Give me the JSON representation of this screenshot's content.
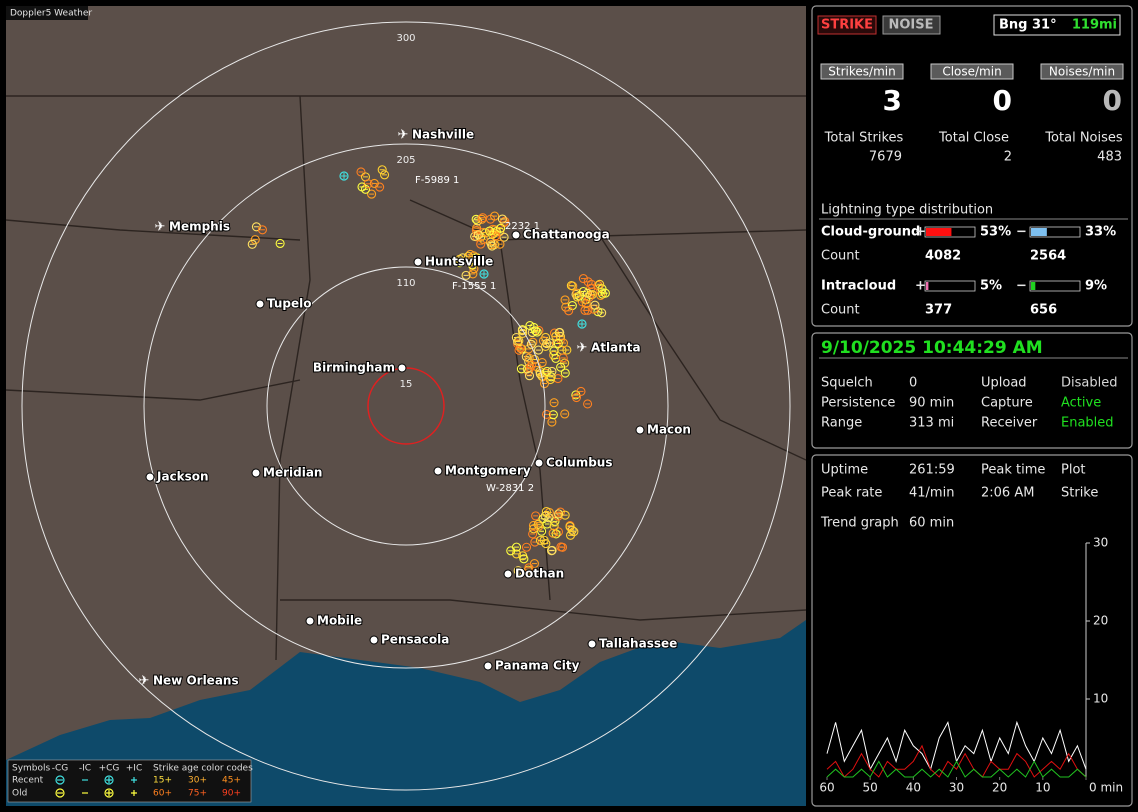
{
  "window": {
    "title": "Doppler5 Weather"
  },
  "map": {
    "range_rings": [
      "300",
      "205",
      "110",
      "15"
    ],
    "cities": [
      "Nashville",
      "Memphis",
      "Chattanooga",
      "Huntsville",
      "Tupelo",
      "Atlanta",
      "Birmingham",
      "Macon",
      "Jackson",
      "Meridian",
      "Montgomery",
      "Columbus",
      "Dothan",
      "Mobile",
      "Pensacola",
      "Tallahassee",
      "Panama City",
      "New Orleans"
    ],
    "strike_tags": [
      "F-5989 1",
      "2232 1",
      "F-1555 1",
      "W-2831 2"
    ],
    "legend": {
      "symbols": "Symbols",
      "headers": [
        "-CG",
        "-IC",
        "+CG",
        "+IC"
      ],
      "age_title": "Strike age color codes",
      "rows": [
        {
          "label": "Recent",
          "ages": [
            "15+",
            "30+",
            "45+"
          ]
        },
        {
          "label": "Old",
          "ages": [
            "60+",
            "75+",
            "90+"
          ]
        }
      ]
    }
  },
  "status": {
    "tabs": [
      "STRIKE",
      "NOISE"
    ],
    "bearing": "Bng 31°",
    "distance": "119mi",
    "rates": [
      {
        "label": "Strikes/min",
        "value": "3",
        "color": "#ffffff"
      },
      {
        "label": "Close/min",
        "value": "0",
        "color": "#ffffff"
      },
      {
        "label": "Noises/min",
        "value": "0",
        "color": "#b8b8b8"
      }
    ],
    "totals": [
      {
        "label": "Total Strikes",
        "value": "7679"
      },
      {
        "label": "Total Close",
        "value": "2"
      },
      {
        "label": "Total Noises",
        "value": "483"
      }
    ],
    "distribution": {
      "title": "Lightning type distribution",
      "count_label": "Count",
      "pos_sign": "+",
      "neg_sign": "−",
      "rows": [
        {
          "label": "Cloud-ground",
          "pos": {
            "value": 53,
            "label": "53%"
          },
          "neg": {
            "value": 33,
            "label": "33%"
          },
          "pos_color": "#ff1010",
          "neg_color": "#7ec0f0",
          "pos_count": "4082",
          "neg_count": "2564"
        },
        {
          "label": "Intracloud",
          "pos": {
            "value": 5,
            "label": "5%"
          },
          "neg": {
            "value": 9,
            "label": "9%"
          },
          "pos_color": "#f070b0",
          "neg_color": "#20d020",
          "pos_count": "377",
          "neg_count": "656"
        }
      ]
    }
  },
  "clock": {
    "datetime": "9/10/2025 10:44:29 AM"
  },
  "settings": {
    "left": [
      {
        "label": "Squelch",
        "value": "0"
      },
      {
        "label": "Persistence",
        "value": "90 min"
      },
      {
        "label": "Range",
        "value": "313 mi"
      }
    ],
    "right": [
      {
        "label": "Upload",
        "value": "Disabled",
        "color": "#d8d8d8"
      },
      {
        "label": "Capture",
        "value": "Active",
        "color": "#20e020"
      },
      {
        "label": "Receiver",
        "value": "Enabled",
        "color": "#20e020"
      }
    ]
  },
  "stats": {
    "uptime_label": "Uptime",
    "uptime": "261:59",
    "peak_rate_label": "Peak rate",
    "peak_rate": "41/min",
    "peak_time_label": "Peak time",
    "peak_time": "2:06 AM",
    "plot_label": "Plot",
    "plot": "Strike",
    "trend_label": "Trend graph",
    "trend": "60 min"
  },
  "trend": {
    "type": "line",
    "xlim": [
      60,
      0
    ],
    "ylim": [
      0,
      30
    ],
    "xticks": [
      60,
      50,
      40,
      30,
      20,
      10,
      {
        "value": 0,
        "label": "0 min"
      }
    ],
    "yticks": [
      10,
      20,
      30
    ],
    "x": [
      60,
      58,
      56,
      54,
      52,
      50,
      48,
      46,
      44,
      42,
      40,
      38,
      36,
      34,
      32,
      30,
      28,
      26,
      24,
      22,
      20,
      18,
      16,
      14,
      12,
      10,
      8,
      6,
      4,
      2,
      0
    ],
    "series": [
      {
        "color": "#ffffff",
        "values": [
          3,
          7,
          2,
          4,
          6,
          1,
          3,
          5,
          2,
          6,
          4,
          3,
          1,
          5,
          7,
          2,
          4,
          3,
          6,
          2,
          5,
          3,
          7,
          4,
          2,
          5,
          3,
          6,
          2,
          4,
          1
        ]
      },
      {
        "color": "#e01010",
        "values": [
          1,
          2,
          0,
          1,
          3,
          1,
          0,
          2,
          1,
          1,
          2,
          4,
          1,
          0,
          2,
          1,
          3,
          1,
          0,
          2,
          1,
          1,
          3,
          2,
          0,
          1,
          2,
          1,
          3,
          1,
          0
        ]
      },
      {
        "color": "#20c020",
        "values": [
          0,
          1,
          0,
          0,
          1,
          0,
          2,
          0,
          1,
          0,
          0,
          1,
          0,
          1,
          0,
          2,
          0,
          1,
          0,
          0,
          1,
          0,
          1,
          0,
          2,
          0,
          1,
          0,
          0,
          1,
          0
        ]
      }
    ]
  }
}
